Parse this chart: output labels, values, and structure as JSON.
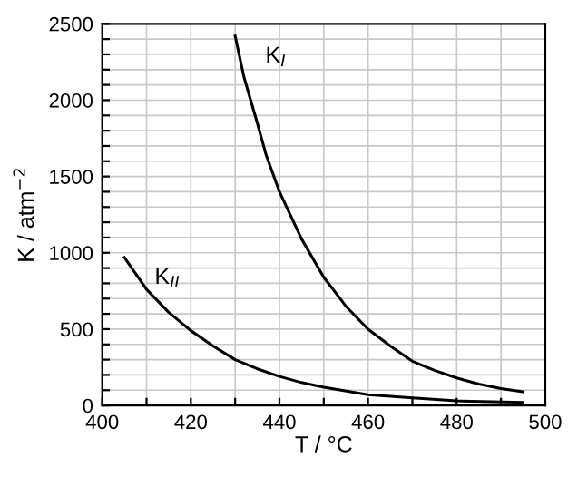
{
  "chart_data": {
    "type": "line",
    "xlabel": "T / °C",
    "ylabel": "K / atm$^{−2}$",
    "series": [
      {
        "name": "K$_{I}$",
        "color": "#000000",
        "x": [
          430,
          432,
          435,
          437,
          440,
          445,
          450,
          455,
          460,
          465,
          470,
          475,
          480,
          485,
          490,
          495
        ],
        "values": [
          2420,
          2150,
          1850,
          1640,
          1400,
          1090,
          840,
          650,
          500,
          390,
          290,
          230,
          180,
          140,
          110,
          90
        ]
      },
      {
        "name": "K$_{II}$",
        "color": "#000000",
        "x": [
          405,
          410,
          415,
          420,
          425,
          430,
          435,
          440,
          445,
          450,
          460,
          470,
          480,
          495
        ],
        "values": [
          970,
          760,
          610,
          490,
          390,
          300,
          240,
          190,
          150,
          120,
          70,
          50,
          30,
          20
        ]
      }
    ],
    "xlim": [
      400,
      500
    ],
    "ylim": [
      0,
      2500
    ],
    "xticks": [
      400,
      {
        "value": 410,
        "label": null
      },
      420,
      {
        "value": 430,
        "label": null
      },
      440,
      {
        "value": 450,
        "label": null
      },
      460,
      {
        "value": 470,
        "label": null
      },
      480,
      {
        "value": 490,
        "label": null
      },
      500
    ],
    "yticks": [
      0,
      {
        "value": 100,
        "label": null
      },
      {
        "value": 200,
        "label": null
      },
      {
        "value": 300,
        "label": null
      },
      {
        "value": 400,
        "label": null
      },
      500,
      {
        "value": 600,
        "label": null
      },
      {
        "value": 700,
        "label": null
      },
      {
        "value": 800,
        "label": null
      },
      {
        "value": 900,
        "label": null
      },
      1000,
      {
        "value": 1100,
        "label": null
      },
      {
        "value": 1200,
        "label": null
      },
      {
        "value": 1300,
        "label": null
      },
      {
        "value": 1400,
        "label": null
      },
      1500,
      {
        "value": 1600,
        "label": null
      },
      {
        "value": 1700,
        "label": null
      },
      {
        "value": 1800,
        "label": null
      },
      {
        "value": 1900,
        "label": null
      },
      2000,
      {
        "value": 2100,
        "label": null
      },
      {
        "value": 2200,
        "label": null
      },
      {
        "value": 2300,
        "label": null
      },
      {
        "value": 2400,
        "label": null
      },
      2500
    ],
    "grid": true,
    "marker": "none",
    "line_style": "solid",
    "legend": false
  }
}
